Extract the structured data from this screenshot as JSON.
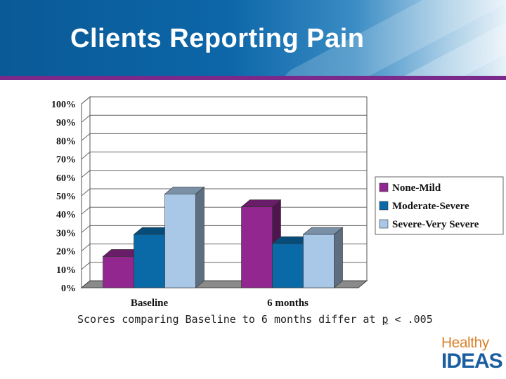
{
  "slide": {
    "title": "Clients Reporting Pain",
    "footnote_pre": "Scores comparing Baseline to 6 months differ at ",
    "footnote_p": "p",
    "footnote_post": " < .005"
  },
  "logo": {
    "line1": "Healthy",
    "line2": "IDEAS"
  },
  "colors": {
    "header": "#0c66a8",
    "band": "#7a2a8a",
    "logo_orange": "#d9822b",
    "logo_blue": "#1a5ea0"
  },
  "chart_data": {
    "type": "bar",
    "categories": [
      "Baseline",
      "6 months"
    ],
    "series": [
      {
        "name": "None-Mild",
        "values": [
          17,
          44
        ],
        "color": "#92278f"
      },
      {
        "name": "Moderate-Severe",
        "values": [
          29,
          24
        ],
        "color": "#0a6aa8"
      },
      {
        "name": "Severe-Very Severe",
        "values": [
          51,
          29
        ],
        "color": "#a9c8e8"
      }
    ],
    "ylim": [
      0,
      100
    ],
    "ytick_labels": [
      "0%",
      "10%",
      "20%",
      "30%",
      "40%",
      "50%",
      "60%",
      "70%",
      "80%",
      "90%",
      "100%"
    ],
    "grid": true,
    "legend_position": "right"
  }
}
